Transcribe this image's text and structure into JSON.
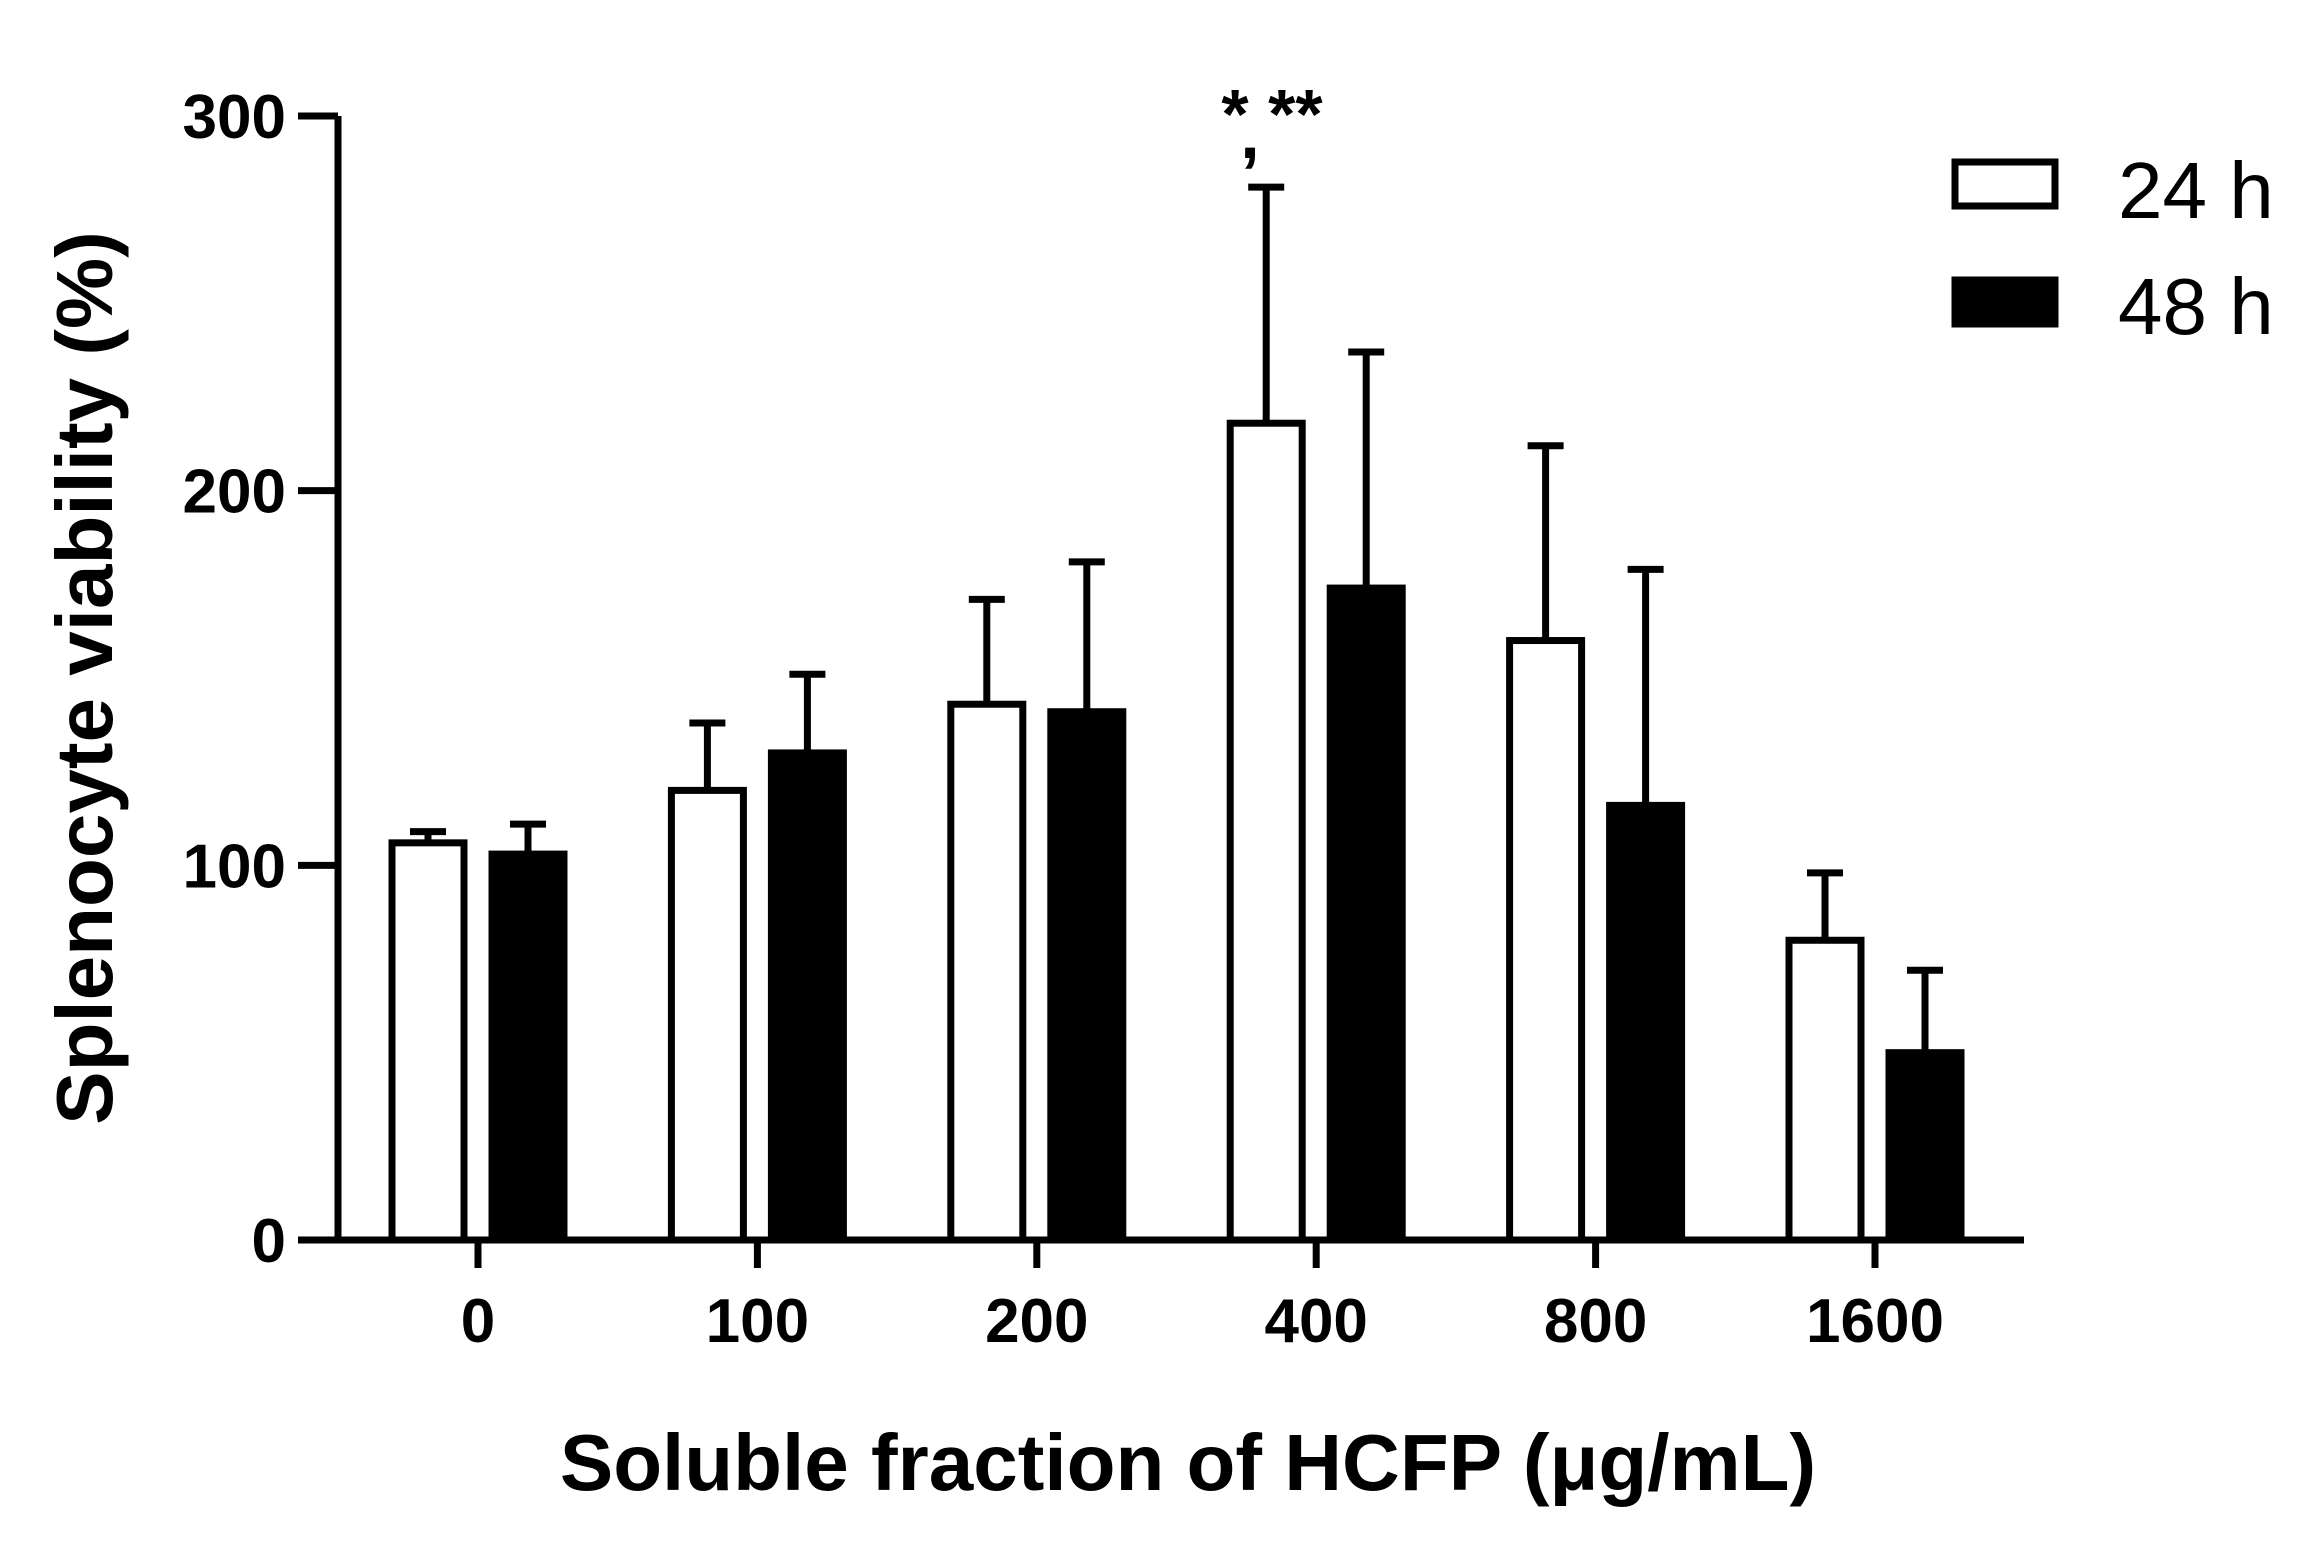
{
  "chart_data": {
    "type": "bar",
    "title": "",
    "xlabel": "Soluble fraction of HCFP (μg/mL)",
    "ylabel": "Splenocyte viability (%)",
    "categories": [
      "0",
      "100",
      "200",
      "400",
      "800",
      "1600"
    ],
    "ylim": [
      0,
      300
    ],
    "yticks": [
      "0",
      "100",
      "200",
      "300"
    ],
    "grid": false,
    "legend_position": "top-right",
    "series": [
      {
        "name": "24 h",
        "fill": "#ffffff",
        "stroke": "#000000",
        "values": [
          106,
          120,
          143,
          218,
          160,
          80
        ],
        "errors": [
          3,
          18,
          28,
          63,
          52,
          18
        ]
      },
      {
        "name": "48 h",
        "fill": "#000000",
        "stroke": "#000000",
        "values": [
          103,
          130,
          141,
          174,
          116,
          50
        ],
        "errors": [
          8,
          21,
          40,
          63,
          63,
          22
        ]
      }
    ],
    "annotations": [
      {
        "category": "400",
        "text": "* **"
      },
      {
        "category": "400",
        "text": ","
      }
    ]
  }
}
